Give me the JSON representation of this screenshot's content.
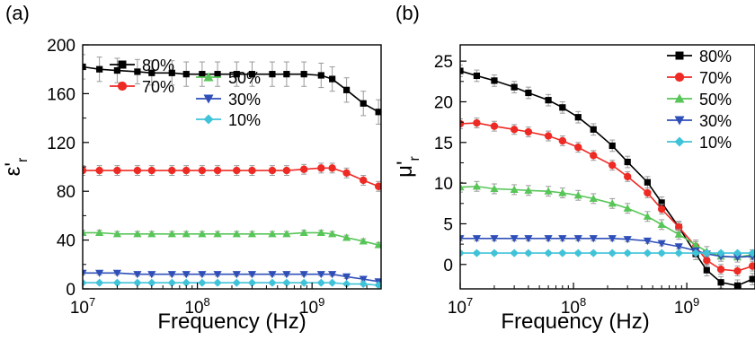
{
  "chart_data": [
    {
      "type": "line",
      "panel_label": "(a)",
      "xlabel": "Frequency (Hz)",
      "ylabel_main": "ε'",
      "ylabel_sub": "r",
      "xscale": "log",
      "xlim": [
        10000000.0,
        4000000000.0
      ],
      "ylim": [
        0,
        200
      ],
      "xticks": [
        {
          "value": 10000000.0,
          "base": "10",
          "exp": "7"
        },
        {
          "value": 100000000.0,
          "base": "10",
          "exp": "8"
        },
        {
          "value": 1000000000.0,
          "base": "10",
          "exp": "9"
        }
      ],
      "yticks": [
        {
          "value": 0,
          "label": "0"
        },
        {
          "value": 40,
          "label": "40"
        },
        {
          "value": 80,
          "label": "80"
        },
        {
          "value": 120,
          "label": "120"
        },
        {
          "value": 160,
          "label": "160"
        },
        {
          "value": 200,
          "label": "200"
        }
      ],
      "legend_position": "top",
      "error_bars": true,
      "series": [
        {
          "name": "80%",
          "color": "#000000",
          "marker": "square",
          "x": [
            10000000.0,
            14000000.0,
            20000000.0,
            30000000.0,
            40000000.0,
            60000000.0,
            80000000.0,
            110000000.0,
            150000000.0,
            220000000.0,
            300000000.0,
            450000000.0,
            600000000.0,
            850000000.0,
            1200000000.0,
            1500000000.0,
            2000000000.0,
            2800000000.0,
            3800000000.0
          ],
          "y": [
            182,
            180,
            179,
            178,
            177,
            177,
            176,
            176,
            176,
            176,
            176,
            176,
            176,
            176,
            175,
            172,
            163,
            152,
            145
          ],
          "err": 10
        },
        {
          "name": "70%",
          "color": "#ee2a24",
          "marker": "circle",
          "x": [
            10000000.0,
            14000000.0,
            20000000.0,
            30000000.0,
            40000000.0,
            60000000.0,
            80000000.0,
            110000000.0,
            150000000.0,
            220000000.0,
            300000000.0,
            450000000.0,
            600000000.0,
            850000000.0,
            1200000000.0,
            1500000000.0,
            2000000000.0,
            2800000000.0,
            3800000000.0
          ],
          "y": [
            97,
            97,
            97,
            97,
            97,
            97,
            97,
            97,
            97,
            97,
            97,
            97,
            97,
            98,
            99,
            99,
            95,
            89,
            84
          ],
          "err": 4
        },
        {
          "name": "50%",
          "color": "#57c557",
          "marker": "triangle-up",
          "x": [
            10000000.0,
            14000000.0,
            20000000.0,
            30000000.0,
            40000000.0,
            60000000.0,
            80000000.0,
            110000000.0,
            150000000.0,
            220000000.0,
            300000000.0,
            450000000.0,
            600000000.0,
            850000000.0,
            1200000000.0,
            1500000000.0,
            2000000000.0,
            2800000000.0,
            3800000000.0
          ],
          "y": [
            46,
            46,
            45,
            45,
            45,
            45,
            45,
            45,
            45,
            45,
            45,
            45,
            45,
            46,
            46,
            45,
            42,
            39,
            36
          ],
          "err": 2
        },
        {
          "name": "30%",
          "color": "#2f4fb8",
          "marker": "triangle-down",
          "x": [
            10000000.0,
            14000000.0,
            20000000.0,
            30000000.0,
            40000000.0,
            60000000.0,
            80000000.0,
            110000000.0,
            150000000.0,
            220000000.0,
            300000000.0,
            450000000.0,
            600000000.0,
            850000000.0,
            1200000000.0,
            1500000000.0,
            2000000000.0,
            2800000000.0,
            3800000000.0
          ],
          "y": [
            13,
            13,
            13,
            12,
            12,
            12,
            12,
            12,
            12,
            12,
            12,
            12,
            12,
            12,
            12,
            12,
            10,
            8,
            6
          ],
          "err": 1.5
        },
        {
          "name": "10%",
          "color": "#3fc3d9",
          "marker": "diamond",
          "x": [
            10000000.0,
            14000000.0,
            20000000.0,
            30000000.0,
            40000000.0,
            60000000.0,
            80000000.0,
            110000000.0,
            150000000.0,
            220000000.0,
            300000000.0,
            450000000.0,
            600000000.0,
            850000000.0,
            1200000000.0,
            1500000000.0,
            2000000000.0,
            2800000000.0,
            3800000000.0
          ],
          "y": [
            5,
            5,
            5,
            5,
            5,
            5,
            5,
            5,
            5,
            5,
            5,
            5,
            5,
            5,
            5,
            5,
            4,
            4,
            3
          ],
          "err": 1
        }
      ]
    },
    {
      "type": "line",
      "panel_label": "(b)",
      "xlabel": "Frequency (Hz)",
      "ylabel_main": "μ'",
      "ylabel_sub": "r",
      "xscale": "log",
      "xlim": [
        10000000.0,
        4000000000.0
      ],
      "ylim": [
        -3,
        27
      ],
      "xticks": [
        {
          "value": 10000000.0,
          "base": "10",
          "exp": "7"
        },
        {
          "value": 100000000.0,
          "base": "10",
          "exp": "8"
        },
        {
          "value": 1000000000.0,
          "base": "10",
          "exp": "9"
        }
      ],
      "yticks": [
        {
          "value": 0,
          "label": "0"
        },
        {
          "value": 5,
          "label": "5"
        },
        {
          "value": 10,
          "label": "10"
        },
        {
          "value": 15,
          "label": "15"
        },
        {
          "value": 20,
          "label": "20"
        },
        {
          "value": 25,
          "label": "25"
        }
      ],
      "legend_position": "top-right",
      "error_bars": true,
      "series": [
        {
          "name": "80%",
          "color": "#000000",
          "marker": "square",
          "x": [
            10000000.0,
            14000000.0,
            20000000.0,
            30000000.0,
            40000000.0,
            60000000.0,
            80000000.0,
            110000000.0,
            150000000.0,
            220000000.0,
            300000000.0,
            450000000.0,
            600000000.0,
            850000000.0,
            1200000000.0,
            1500000000.0,
            2000000000.0,
            2800000000.0,
            3800000000.0
          ],
          "y": [
            23.8,
            23.2,
            22.6,
            21.8,
            21.1,
            20.2,
            19.3,
            18.1,
            16.6,
            14.6,
            12.6,
            10.1,
            7.6,
            4.6,
            1.3,
            -0.7,
            -2.2,
            -2.6,
            -1.8
          ],
          "err": 0.7
        },
        {
          "name": "70%",
          "color": "#ee2a24",
          "marker": "circle",
          "x": [
            10000000.0,
            14000000.0,
            20000000.0,
            30000000.0,
            40000000.0,
            60000000.0,
            80000000.0,
            110000000.0,
            150000000.0,
            220000000.0,
            300000000.0,
            450000000.0,
            600000000.0,
            850000000.0,
            1200000000.0,
            1500000000.0,
            2000000000.0,
            2800000000.0,
            3800000000.0
          ],
          "y": [
            17.3,
            17.4,
            17.0,
            16.6,
            16.3,
            15.8,
            15.2,
            14.4,
            13.4,
            12.2,
            10.8,
            8.8,
            6.8,
            4.6,
            2.2,
            0.5,
            -0.6,
            -0.8,
            -0.2
          ],
          "err": 0.6
        },
        {
          "name": "50%",
          "color": "#57c557",
          "marker": "triangle-up",
          "x": [
            10000000.0,
            14000000.0,
            20000000.0,
            30000000.0,
            40000000.0,
            60000000.0,
            80000000.0,
            110000000.0,
            150000000.0,
            220000000.0,
            300000000.0,
            450000000.0,
            600000000.0,
            850000000.0,
            1200000000.0,
            1500000000.0,
            2000000000.0,
            2800000000.0,
            3800000000.0
          ],
          "y": [
            9.5,
            9.6,
            9.3,
            9.2,
            9.1,
            9.0,
            8.8,
            8.5,
            8.1,
            7.5,
            6.9,
            5.9,
            4.9,
            3.7,
            2.4,
            1.6,
            1.0,
            0.9,
            1.2
          ],
          "err": 0.6
        },
        {
          "name": "30%",
          "color": "#2f4fb8",
          "marker": "triangle-down",
          "x": [
            10000000.0,
            14000000.0,
            20000000.0,
            30000000.0,
            40000000.0,
            60000000.0,
            80000000.0,
            110000000.0,
            150000000.0,
            220000000.0,
            300000000.0,
            450000000.0,
            600000000.0,
            850000000.0,
            1200000000.0,
            1500000000.0,
            2000000000.0,
            2800000000.0,
            3800000000.0
          ],
          "y": [
            3.2,
            3.2,
            3.2,
            3.2,
            3.2,
            3.2,
            3.2,
            3.2,
            3.2,
            3.2,
            3.1,
            2.9,
            2.6,
            2.2,
            1.7,
            1.3,
            1.0,
            0.9,
            1.0
          ],
          "err": 0.3
        },
        {
          "name": "10%",
          "color": "#3fc3d9",
          "marker": "diamond",
          "x": [
            10000000.0,
            14000000.0,
            20000000.0,
            30000000.0,
            40000000.0,
            60000000.0,
            80000000.0,
            110000000.0,
            150000000.0,
            220000000.0,
            300000000.0,
            450000000.0,
            600000000.0,
            850000000.0,
            1200000000.0,
            1500000000.0,
            2000000000.0,
            2800000000.0,
            3800000000.0
          ],
          "y": [
            1.4,
            1.4,
            1.4,
            1.4,
            1.4,
            1.4,
            1.4,
            1.4,
            1.4,
            1.4,
            1.4,
            1.4,
            1.4,
            1.4,
            1.4,
            1.4,
            1.4,
            1.4,
            1.4
          ],
          "err": 0.2
        }
      ]
    }
  ]
}
